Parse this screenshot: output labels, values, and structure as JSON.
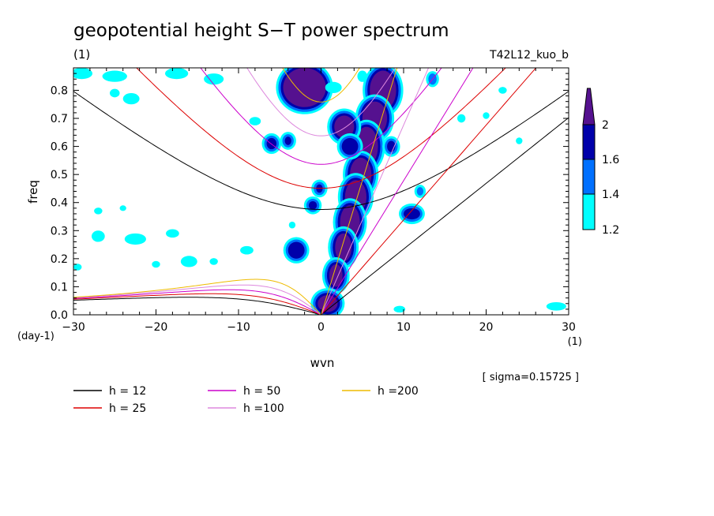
{
  "title": "geopotential height S−T power spectrum",
  "subtitle": "(1)",
  "experiment": "T42L12_kuo_b",
  "sigma_note": "[ sigma=0.15725 ]",
  "colors": {
    "c12": "#000000",
    "c25": "#dd0000",
    "c50": "#cc00cc",
    "c100": "#dd88dd",
    "c200": "#eebb00",
    "shade_1_2": "#00ffff",
    "shade_1_4": "#0070ff",
    "shade_1_6": "#0000aa",
    "shade_2": "#55118f"
  },
  "chart_data": {
    "type": "contour",
    "xlabel": "wvn",
    "xunit": "(1)",
    "ylabel": "freq",
    "yunit": "(day-1)",
    "xlim": [
      -30,
      30
    ],
    "ylim": [
      0,
      0.88
    ],
    "xticks": [
      "−30",
      "−20",
      "−10",
      "0",
      "10",
      "20",
      "30"
    ],
    "yticks": [
      "0.0",
      "0.1",
      "0.2",
      "0.3",
      "0.4",
      "0.5",
      "0.6",
      "0.7",
      "0.8"
    ],
    "colorbar": {
      "levels": [
        "1.2",
        "1.4",
        "1.6",
        "2"
      ],
      "colors": [
        "#00ffff",
        "#0070ff",
        "#0000aa",
        "#55118f"
      ]
    },
    "dispersion_curves": [
      {
        "label": "h = 12",
        "h": 12,
        "color": "#000000"
      },
      {
        "label": "h = 25",
        "h": 25,
        "color": "#dd0000"
      },
      {
        "label": "h = 50",
        "h": 50,
        "color": "#cc00cc"
      },
      {
        "label": "h =100",
        "h": 100,
        "color": "#dd88dd"
      },
      {
        "label": "h =200",
        "h": 200,
        "color": "#eebb00"
      }
    ],
    "blobs": [
      {
        "x": 7.5,
        "y": 0.8,
        "rx": 1.6,
        "ry": 0.07,
        "level": 2
      },
      {
        "x": 6.5,
        "y": 0.7,
        "rx": 1.5,
        "ry": 0.06,
        "level": 2
      },
      {
        "x": 5.5,
        "y": 0.6,
        "rx": 1.4,
        "ry": 0.07,
        "level": 2
      },
      {
        "x": 4.8,
        "y": 0.5,
        "rx": 1.3,
        "ry": 0.06,
        "level": 2
      },
      {
        "x": 4.2,
        "y": 0.42,
        "rx": 1.3,
        "ry": 0.06,
        "level": 2
      },
      {
        "x": 3.5,
        "y": 0.33,
        "rx": 1.2,
        "ry": 0.06,
        "level": 2
      },
      {
        "x": 2.7,
        "y": 0.24,
        "rx": 1.0,
        "ry": 0.05,
        "level": 2
      },
      {
        "x": 1.8,
        "y": 0.14,
        "rx": 0.8,
        "ry": 0.04,
        "level": 2
      },
      {
        "x": 0.8,
        "y": 0.04,
        "rx": 1.2,
        "ry": 0.03,
        "level": 2
      },
      {
        "x": -2.0,
        "y": 0.81,
        "rx": 2.6,
        "ry": 0.07,
        "level": 2
      },
      {
        "x": 2.8,
        "y": 0.67,
        "rx": 1.2,
        "ry": 0.04,
        "level": 2
      },
      {
        "x": 3.5,
        "y": 0.6,
        "rx": 1.0,
        "ry": 0.03,
        "level": 1.6
      },
      {
        "x": 11.0,
        "y": 0.36,
        "rx": 1.0,
        "ry": 0.02,
        "level": 1.6
      },
      {
        "x": -3.0,
        "y": 0.23,
        "rx": 1.0,
        "ry": 0.03,
        "level": 1.6
      },
      {
        "x": -1.0,
        "y": 0.39,
        "rx": 0.5,
        "ry": 0.015,
        "level": 1.6
      },
      {
        "x": -6.0,
        "y": 0.61,
        "rx": 0.6,
        "ry": 0.02,
        "level": 1.6
      },
      {
        "x": -4.0,
        "y": 0.62,
        "rx": 0.4,
        "ry": 0.015,
        "level": 1.6
      },
      {
        "x": -0.2,
        "y": 0.45,
        "rx": 0.4,
        "ry": 0.015,
        "level": 1.6
      },
      {
        "x": 8.5,
        "y": 0.6,
        "rx": 0.5,
        "ry": 0.02,
        "level": 1.6
      },
      {
        "x": 12.0,
        "y": 0.44,
        "rx": 0.4,
        "ry": 0.015,
        "level": 1.4
      },
      {
        "x": 13.5,
        "y": 0.84,
        "rx": 0.5,
        "ry": 0.02,
        "level": 1.4
      },
      {
        "x": -29.0,
        "y": 0.86,
        "rx": 1.3,
        "ry": 0.02,
        "level": 1.2
      },
      {
        "x": -25.0,
        "y": 0.85,
        "rx": 1.5,
        "ry": 0.02,
        "level": 1.2
      },
      {
        "x": -17.5,
        "y": 0.86,
        "rx": 1.4,
        "ry": 0.02,
        "level": 1.2
      },
      {
        "x": -13.0,
        "y": 0.84,
        "rx": 1.2,
        "ry": 0.02,
        "level": 1.2
      },
      {
        "x": -23.0,
        "y": 0.77,
        "rx": 1.0,
        "ry": 0.02,
        "level": 1.2
      },
      {
        "x": -25.0,
        "y": 0.79,
        "rx": 0.6,
        "ry": 0.015,
        "level": 1.2
      },
      {
        "x": -27.0,
        "y": 0.28,
        "rx": 0.8,
        "ry": 0.02,
        "level": 1.2
      },
      {
        "x": -22.5,
        "y": 0.27,
        "rx": 1.3,
        "ry": 0.02,
        "level": 1.2
      },
      {
        "x": -18.0,
        "y": 0.29,
        "rx": 0.8,
        "ry": 0.015,
        "level": 1.2
      },
      {
        "x": -16.0,
        "y": 0.19,
        "rx": 1.0,
        "ry": 0.02,
        "level": 1.2
      },
      {
        "x": -9.0,
        "y": 0.23,
        "rx": 0.8,
        "ry": 0.015,
        "level": 1.2
      },
      {
        "x": -27.0,
        "y": 0.37,
        "rx": 0.5,
        "ry": 0.012,
        "level": 1.2
      },
      {
        "x": -24.0,
        "y": 0.38,
        "rx": 0.4,
        "ry": 0.01,
        "level": 1.2
      },
      {
        "x": -8.0,
        "y": 0.69,
        "rx": 0.7,
        "ry": 0.015,
        "level": 1.2
      },
      {
        "x": -20.0,
        "y": 0.18,
        "rx": 0.5,
        "ry": 0.012,
        "level": 1.2
      },
      {
        "x": 1.5,
        "y": 0.81,
        "rx": 1.0,
        "ry": 0.02,
        "level": 1.2
      },
      {
        "x": 5.0,
        "y": 0.85,
        "rx": 0.6,
        "ry": 0.02,
        "level": 1.2
      },
      {
        "x": 17.0,
        "y": 0.7,
        "rx": 0.5,
        "ry": 0.015,
        "level": 1.2
      },
      {
        "x": 20.0,
        "y": 0.71,
        "rx": 0.4,
        "ry": 0.012,
        "level": 1.2
      },
      {
        "x": 22.0,
        "y": 0.8,
        "rx": 0.5,
        "ry": 0.012,
        "level": 1.2
      },
      {
        "x": 28.5,
        "y": 0.03,
        "rx": 1.2,
        "ry": 0.015,
        "level": 1.2
      },
      {
        "x": 9.5,
        "y": 0.02,
        "rx": 0.7,
        "ry": 0.012,
        "level": 1.2
      },
      {
        "x": -13.0,
        "y": 0.19,
        "rx": 0.5,
        "ry": 0.012,
        "level": 1.2
      },
      {
        "x": -3.5,
        "y": 0.32,
        "rx": 0.4,
        "ry": 0.012,
        "level": 1.2
      },
      {
        "x": 24.0,
        "y": 0.62,
        "rx": 0.4,
        "ry": 0.012,
        "level": 1.2
      },
      {
        "x": -29.5,
        "y": 0.17,
        "rx": 0.5,
        "ry": 0.012,
        "level": 1.2
      }
    ]
  }
}
